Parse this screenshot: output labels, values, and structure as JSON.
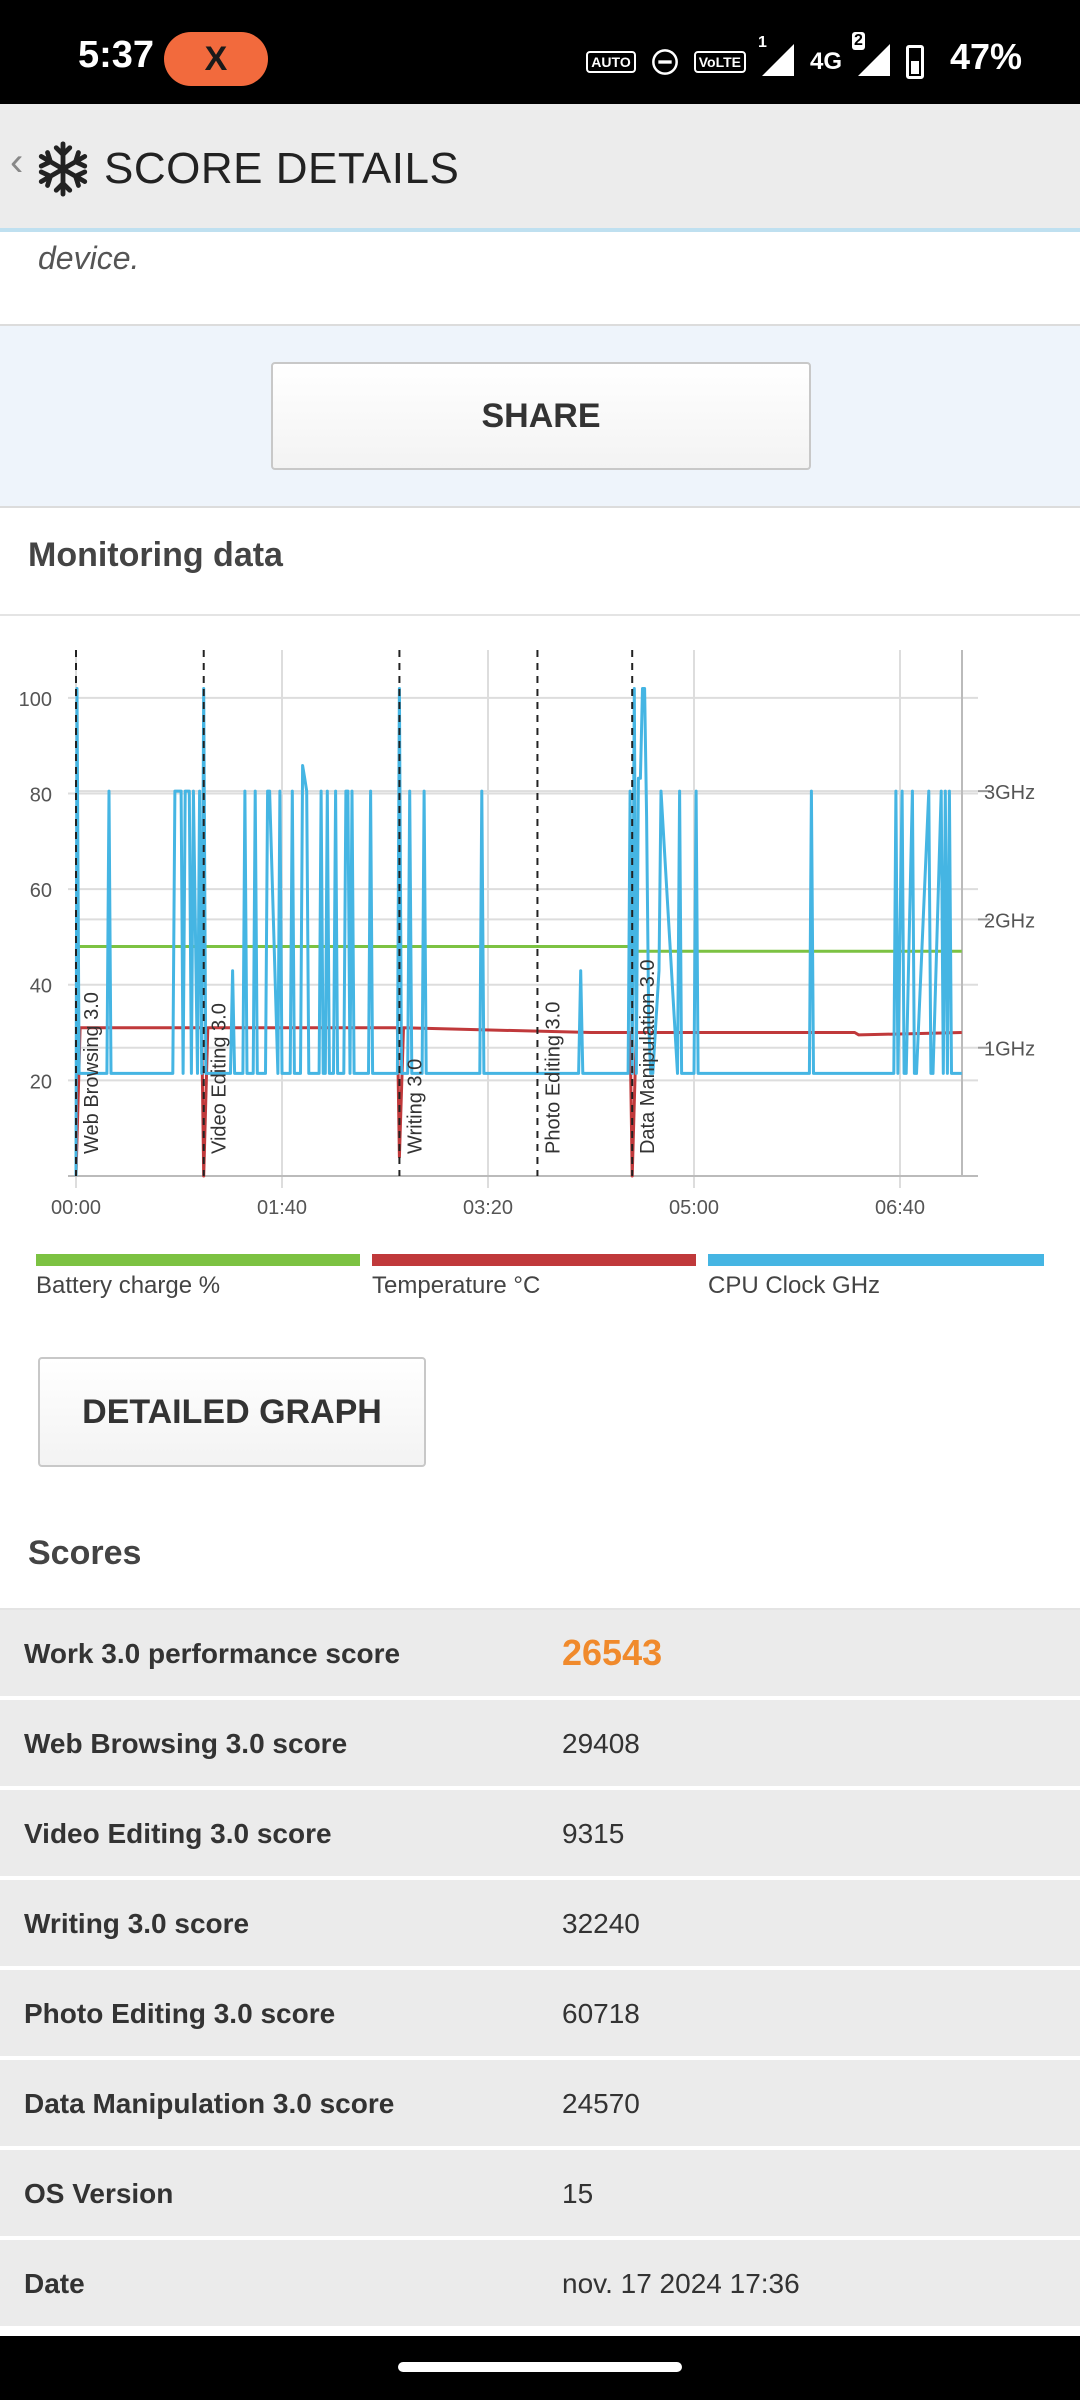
{
  "status_bar": {
    "time": "5:37",
    "badge": "X",
    "icons": [
      "auto-hz-icon",
      "dnd-icon",
      "volte-icon",
      "signal-1-icon",
      "4g-icon",
      "signal-2-icon",
      "battery-icon"
    ],
    "network_label": "4G",
    "sim1": "1",
    "sim2": "2",
    "auto_label": "AUTO",
    "volte_label": "VoLTE",
    "battery_percent": "47%",
    "battery_level": 0.47
  },
  "header": {
    "back_glyph": "‹",
    "title": "SCORE DETAILS"
  },
  "description_tail": "device.",
  "share_button": "SHARE",
  "monitoring": {
    "title": "Monitoring data",
    "detailed_graph_button": "DETAILED GRAPH"
  },
  "chart_data": {
    "type": "line",
    "x_ticks": [
      "00:00",
      "01:40",
      "03:20",
      "05:00",
      "06:40"
    ],
    "x_tick_seconds": [
      0,
      100,
      200,
      300,
      400
    ],
    "x_range_seconds": [
      0,
      430
    ],
    "y_left_ticks": [
      "20",
      "40",
      "60",
      "80",
      "100"
    ],
    "y_left_values": [
      20,
      40,
      60,
      80,
      100
    ],
    "y_left_range": [
      0,
      110
    ],
    "y_right_ticks": [
      "1GHz",
      "2GHz",
      "3GHz"
    ],
    "y_right_values": [
      1,
      2,
      3
    ],
    "y_right_range": [
      0,
      4.1
    ],
    "markers": [
      {
        "label": "Web Browsing 3.0",
        "t": 0
      },
      {
        "label": "Video Editing 3.0",
        "t": 62
      },
      {
        "label": "Writing 3.0",
        "t": 157
      },
      {
        "label": "Photo Editing 3.0",
        "t": 224
      },
      {
        "label": "Data Manipulation 3.0",
        "t": 270
      }
    ],
    "legend": [
      {
        "label": "Battery charge %",
        "color": "#7cc242"
      },
      {
        "label": "Temperature °C",
        "color": "#c0393b"
      },
      {
        "label": "CPU Clock GHz",
        "color": "#45b5e3"
      }
    ],
    "series": [
      {
        "name": "Battery charge %",
        "color": "#7cc242",
        "axis": "left",
        "x": [
          0,
          1,
          2,
          62,
          63,
          270,
          271,
          430
        ],
        "y": [
          0,
          48,
          48,
          48,
          48,
          48,
          47,
          47
        ]
      },
      {
        "name": "Temperature °C",
        "color": "#c0393b",
        "axis": "left",
        "x": [
          0,
          2,
          20,
          61,
          62,
          64,
          150,
          156,
          157,
          159,
          250,
          255,
          269,
          270,
          272,
          300,
          378,
          380,
          430
        ],
        "y": [
          0,
          31,
          31,
          31,
          0,
          31,
          31,
          31,
          4,
          31,
          30,
          30,
          30,
          0,
          30,
          30,
          30,
          29.5,
          30
        ]
      },
      {
        "name": "CPU Clock GHz",
        "color": "#45b5e3",
        "axis": "right",
        "x": [
          0,
          0.5,
          1.5,
          15,
          16,
          17,
          47,
          48,
          51,
          52,
          53,
          55,
          56,
          57,
          59,
          60,
          61,
          62,
          63,
          64,
          75,
          76,
          77,
          81,
          82,
          83,
          86,
          87,
          88,
          92,
          93,
          94,
          98,
          99,
          100,
          104,
          105,
          106,
          109,
          110,
          111,
          112,
          113,
          118,
          119,
          120,
          121,
          122,
          123,
          125,
          126,
          127,
          130,
          131,
          132,
          133,
          134,
          135,
          142,
          143,
          144,
          156,
          157,
          158,
          161,
          162,
          163,
          168,
          169,
          170,
          196,
          197,
          198,
          244,
          245,
          246,
          268,
          269,
          270,
          271,
          272,
          273,
          274,
          275,
          276,
          277,
          278,
          279,
          280,
          283,
          284,
          292,
          293,
          294,
          300,
          301,
          302,
          356,
          357,
          358,
          397,
          398,
          399,
          401,
          402,
          403,
          406,
          407,
          408,
          414,
          415,
          416,
          420,
          421,
          422,
          423,
          424,
          425,
          430
        ],
        "y": [
          0,
          3.8,
          0.8,
          0.8,
          3.0,
          0.8,
          0.8,
          3.0,
          3.0,
          0.8,
          3.0,
          3.0,
          0.8,
          3.0,
          0.8,
          3.0,
          0.8,
          3.8,
          0.8,
          0.8,
          0.8,
          1.6,
          0.8,
          0.8,
          3.0,
          0.8,
          0.8,
          3.0,
          0.8,
          0.8,
          3.0,
          3.0,
          0.8,
          3.0,
          0.8,
          0.8,
          3.0,
          0.8,
          0.8,
          3.2,
          3.1,
          3.0,
          0.8,
          0.8,
          3.0,
          0.8,
          0.8,
          3.0,
          0.8,
          0.8,
          3.0,
          0.8,
          0.8,
          3.0,
          3.0,
          0.8,
          3.0,
          0.8,
          0.8,
          3.0,
          0.8,
          0.8,
          3.8,
          0.8,
          0.8,
          3.0,
          0.8,
          0.8,
          3.0,
          0.8,
          0.8,
          3.0,
          0.8,
          0.8,
          1.6,
          0.8,
          0.8,
          3.0,
          0.8,
          3.8,
          0.8,
          3.1,
          3.1,
          3.8,
          3.8,
          2.8,
          1.2,
          0.8,
          0.8,
          1.6,
          3.0,
          0.8,
          3.0,
          0.8,
          0.8,
          3.0,
          0.8,
          0.8,
          3.0,
          0.8,
          0.8,
          3.0,
          0.8,
          3.0,
          0.8,
          0.8,
          3.0,
          0.8,
          0.8,
          3.0,
          0.8,
          0.8,
          3.0,
          0.8,
          3.0,
          0.8,
          3.0,
          0.8,
          0.8
        ]
      }
    ]
  },
  "scores": {
    "title": "Scores",
    "rows": [
      {
        "label": "Work 3.0 performance score",
        "value": "26543"
      },
      {
        "label": "Web Browsing 3.0 score",
        "value": "29408"
      },
      {
        "label": "Video Editing 3.0 score",
        "value": "9315"
      },
      {
        "label": "Writing 3.0 score",
        "value": "32240"
      },
      {
        "label": "Photo Editing 3.0 score",
        "value": "60718"
      },
      {
        "label": "Data Manipulation 3.0 score",
        "value": "24570"
      },
      {
        "label": "OS Version",
        "value": "15"
      },
      {
        "label": "Date",
        "value": "nov. 17 2024 17:36"
      }
    ]
  },
  "colors": {
    "accent_score": "#f08a2c",
    "badge": "#f26a3d",
    "share_background": "#eef4fb"
  }
}
